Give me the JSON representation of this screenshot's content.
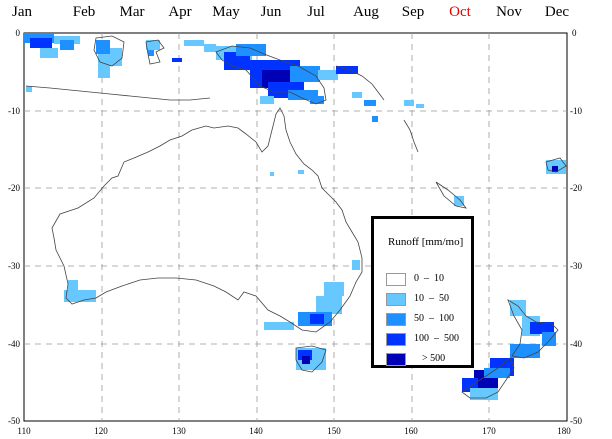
{
  "months": [
    {
      "label": "Jan",
      "active": false
    },
    {
      "label": "Feb",
      "active": false
    },
    {
      "label": "Mar",
      "active": false
    },
    {
      "label": "Apr",
      "active": false
    },
    {
      "label": "May",
      "active": false
    },
    {
      "label": "Jun",
      "active": false
    },
    {
      "label": "Jul",
      "active": false
    },
    {
      "label": "Aug",
      "active": false
    },
    {
      "label": "Sep",
      "active": false
    },
    {
      "label": "Oct",
      "active": true
    },
    {
      "label": "Nov",
      "active": false
    },
    {
      "label": "Dec",
      "active": false
    }
  ],
  "map": {
    "lon_range": [
      110,
      180
    ],
    "lat_range": [
      -50,
      0
    ],
    "lon_ticks": [
      "110",
      "120",
      "130",
      "140",
      "150",
      "160",
      "170",
      "180"
    ],
    "lat_ticks": [
      "0",
      "-10",
      "-20",
      "-30",
      "-40",
      "-50"
    ]
  },
  "legend": {
    "title": "Runoff [mm/mo]",
    "items": [
      {
        "label": "0  –  10",
        "color": "#ffffff"
      },
      {
        "label": "10  –  50",
        "color": "#66c8ff"
      },
      {
        "label": "50  –  100",
        "color": "#1e90ff"
      },
      {
        "label": "100  –  500",
        "color": "#0033ff"
      },
      {
        "label": "> 500",
        "color": "#0000b4"
      }
    ]
  },
  "colors": {
    "month_active": "#e00000",
    "coast": "#444444",
    "grid": "#999999"
  }
}
